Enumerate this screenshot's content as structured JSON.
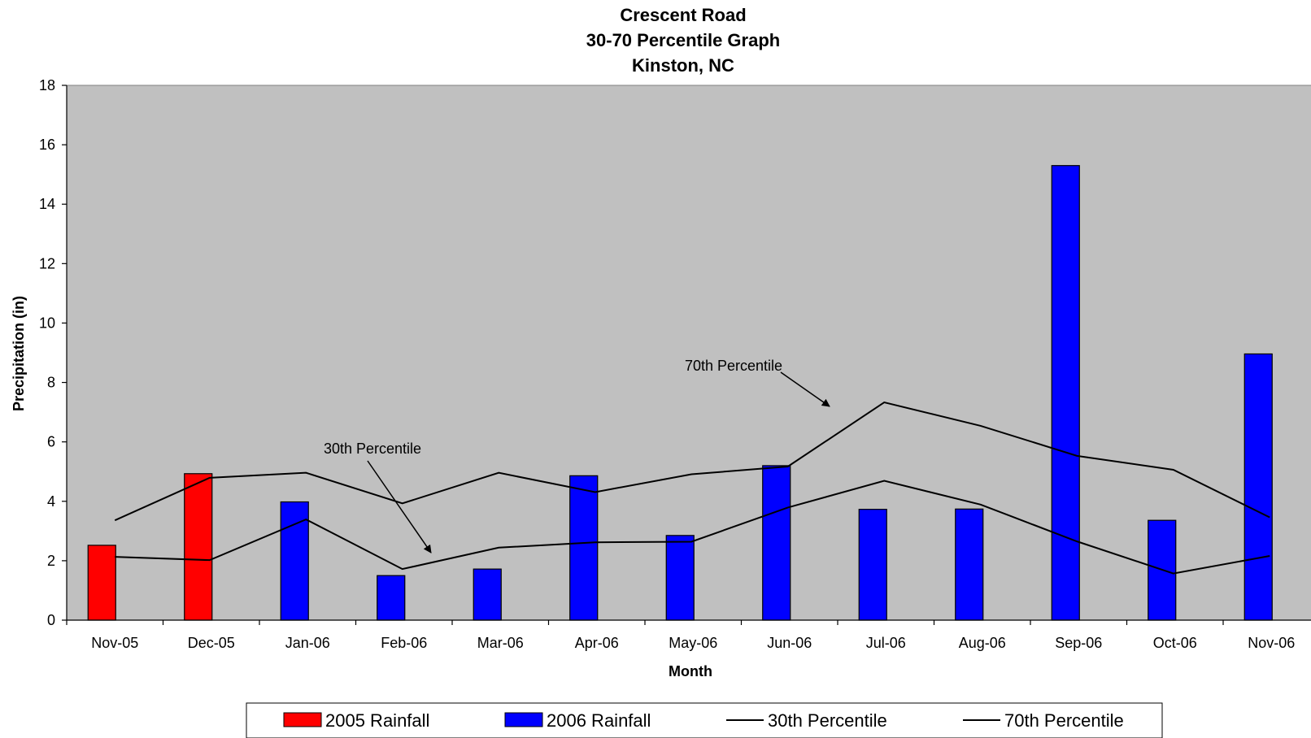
{
  "chart_data": {
    "type": "bar",
    "title": [
      "Crescent Road",
      "30-70 Percentile Graph",
      "Kinston, NC"
    ],
    "xlabel": "Month",
    "ylabel": "Precipitation (in)",
    "ylim": [
      0,
      18
    ],
    "yticks": [
      0,
      2,
      4,
      6,
      8,
      10,
      12,
      14,
      16,
      18
    ],
    "categories": [
      "Nov-05",
      "Dec-05",
      "Jan-06",
      "Feb-06",
      "Mar-06",
      "Apr-06",
      "May-06",
      "Jun-06",
      "Jul-06",
      "Aug-06",
      "Sep-06",
      "Oct-06",
      "Nov-06"
    ],
    "series": [
      {
        "name": "2005 Rainfall",
        "kind": "bar",
        "color": "#ff0000",
        "values": [
          2.52,
          4.93,
          null,
          null,
          null,
          null,
          null,
          null,
          null,
          null,
          null,
          null,
          null
        ]
      },
      {
        "name": "2006 Rainfall",
        "kind": "bar",
        "color": "#0000ff",
        "values": [
          null,
          null,
          3.98,
          1.5,
          1.72,
          4.86,
          2.85,
          5.2,
          3.73,
          3.74,
          15.3,
          3.36,
          8.96
        ]
      },
      {
        "name": "30th Percentile",
        "kind": "line",
        "color": "#000000",
        "values": [
          2.13,
          2.02,
          3.39,
          1.72,
          2.44,
          2.62,
          2.64,
          3.79,
          4.69,
          3.89,
          2.65,
          1.57,
          2.16
        ]
      },
      {
        "name": "70th Percentile",
        "kind": "line",
        "color": "#000000",
        "values": [
          3.36,
          4.79,
          4.96,
          3.93,
          4.96,
          4.31,
          4.91,
          5.17,
          7.33,
          6.54,
          5.53,
          5.06,
          3.46
        ]
      }
    ],
    "annotations": [
      {
        "text": "30th Percentile",
        "points_to": {
          "category": "Feb-06",
          "series": "30th Percentile"
        }
      },
      {
        "text": "70th Percentile",
        "points_to": {
          "category": "Jun-06",
          "series": "70th Percentile"
        }
      }
    ],
    "plot_background": "#c0c0c0",
    "grid": false,
    "legend_position": "bottom"
  }
}
